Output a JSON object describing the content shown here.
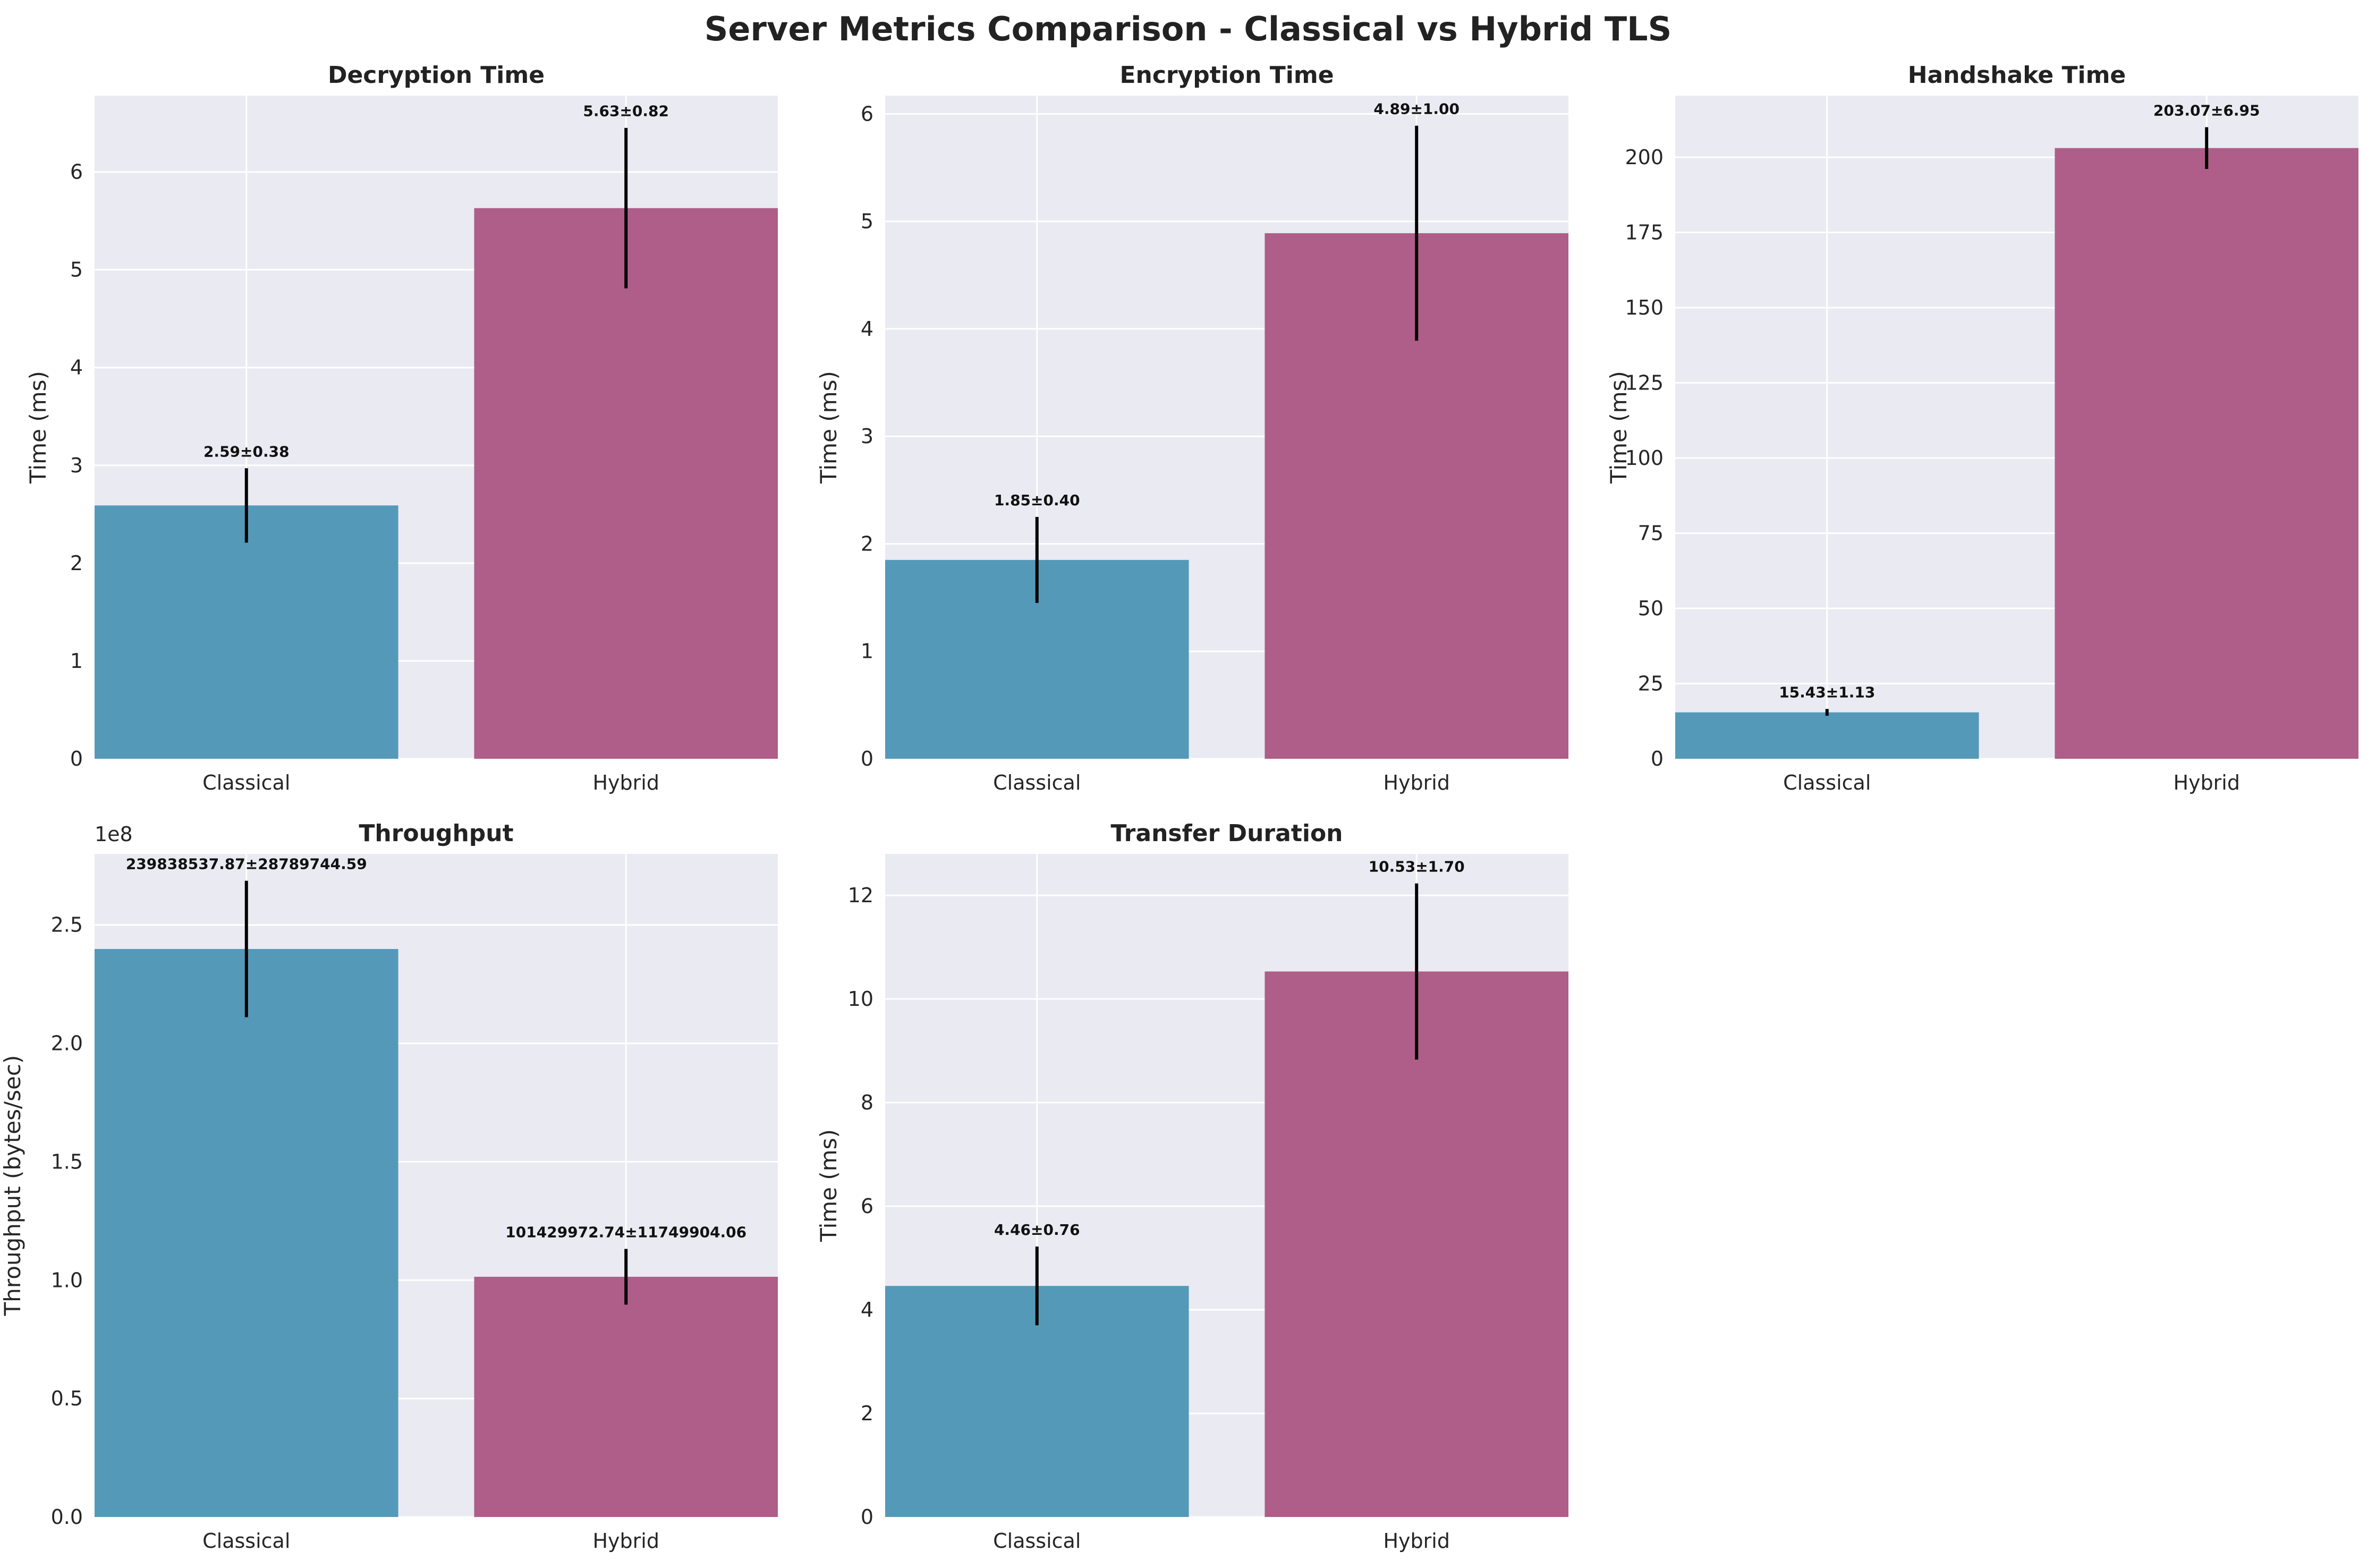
{
  "title": "Server Metrics Comparison - Classical vs Hybrid TLS",
  "colors": {
    "Classical": "#5599b9",
    "Hybrid": "#ae5e88",
    "panel_bg": "#eaeaf2",
    "grid": "#ffffff",
    "error_bar": "#000000"
  },
  "chart_data": [
    {
      "type": "bar",
      "title": "Decryption Time",
      "ylabel": "Time (ms)",
      "categories": [
        "Classical",
        "Hybrid"
      ],
      "values": [
        2.59,
        5.63
      ],
      "errors": [
        0.38,
        0.82
      ],
      "data_labels": [
        "2.59±0.38",
        "5.63±0.82"
      ],
      "ylim": [
        0,
        6.78
      ],
      "yticks": [
        0,
        1,
        2,
        3,
        4,
        5,
        6
      ],
      "ytick_labels": [
        "0",
        "1",
        "2",
        "3",
        "4",
        "5",
        "6"
      ],
      "offset_label": "",
      "grid": true
    },
    {
      "type": "bar",
      "title": "Encryption Time",
      "ylabel": "Time (ms)",
      "categories": [
        "Classical",
        "Hybrid"
      ],
      "values": [
        1.85,
        4.89
      ],
      "errors": [
        0.4,
        1.0
      ],
      "data_labels": [
        "1.85±0.40",
        "4.89±1.00"
      ],
      "ylim": [
        0,
        6.17
      ],
      "yticks": [
        0,
        1,
        2,
        3,
        4,
        5,
        6
      ],
      "ytick_labels": [
        "0",
        "1",
        "2",
        "3",
        "4",
        "5",
        "6"
      ],
      "offset_label": "",
      "grid": true
    },
    {
      "type": "bar",
      "title": "Handshake Time",
      "ylabel": "Time (ms)",
      "categories": [
        "Classical",
        "Hybrid"
      ],
      "values": [
        15.43,
        203.07
      ],
      "errors": [
        1.13,
        6.95
      ],
      "data_labels": [
        "15.43±1.13",
        "203.07±6.95"
      ],
      "ylim": [
        0,
        220.5
      ],
      "yticks": [
        0,
        25,
        50,
        75,
        100,
        125,
        150,
        175,
        200
      ],
      "ytick_labels": [
        "0",
        "25",
        "50",
        "75",
        "100",
        "125",
        "150",
        "175",
        "200"
      ],
      "offset_label": "",
      "grid": true
    },
    {
      "type": "bar",
      "title": "Throughput",
      "ylabel": "Throughput (bytes/sec)",
      "categories": [
        "Classical",
        "Hybrid"
      ],
      "values": [
        239838537.87,
        101429972.74
      ],
      "errors": [
        28789744.59,
        11749904.06
      ],
      "data_labels": [
        "239838537.87±28789744.59",
        "101429972.74±11749904.06"
      ],
      "ylim": [
        0,
        280000000
      ],
      "yticks": [
        0,
        50000000,
        100000000,
        150000000,
        200000000,
        250000000
      ],
      "ytick_labels": [
        "0.0",
        "0.5",
        "1.0",
        "1.5",
        "2.0",
        "2.5"
      ],
      "offset_label": "1e8",
      "grid": true
    },
    {
      "type": "bar",
      "title": "Transfer Duration",
      "ylabel": "Time (ms)",
      "categories": [
        "Classical",
        "Hybrid"
      ],
      "values": [
        4.46,
        10.53
      ],
      "errors": [
        0.76,
        1.7
      ],
      "data_labels": [
        "4.46±0.76",
        "10.53±1.70"
      ],
      "ylim": [
        0,
        12.8
      ],
      "yticks": [
        0,
        2,
        4,
        6,
        8,
        10,
        12
      ],
      "ytick_labels": [
        "0",
        "2",
        "4",
        "6",
        "8",
        "10",
        "12"
      ],
      "offset_label": "",
      "grid": true
    }
  ]
}
